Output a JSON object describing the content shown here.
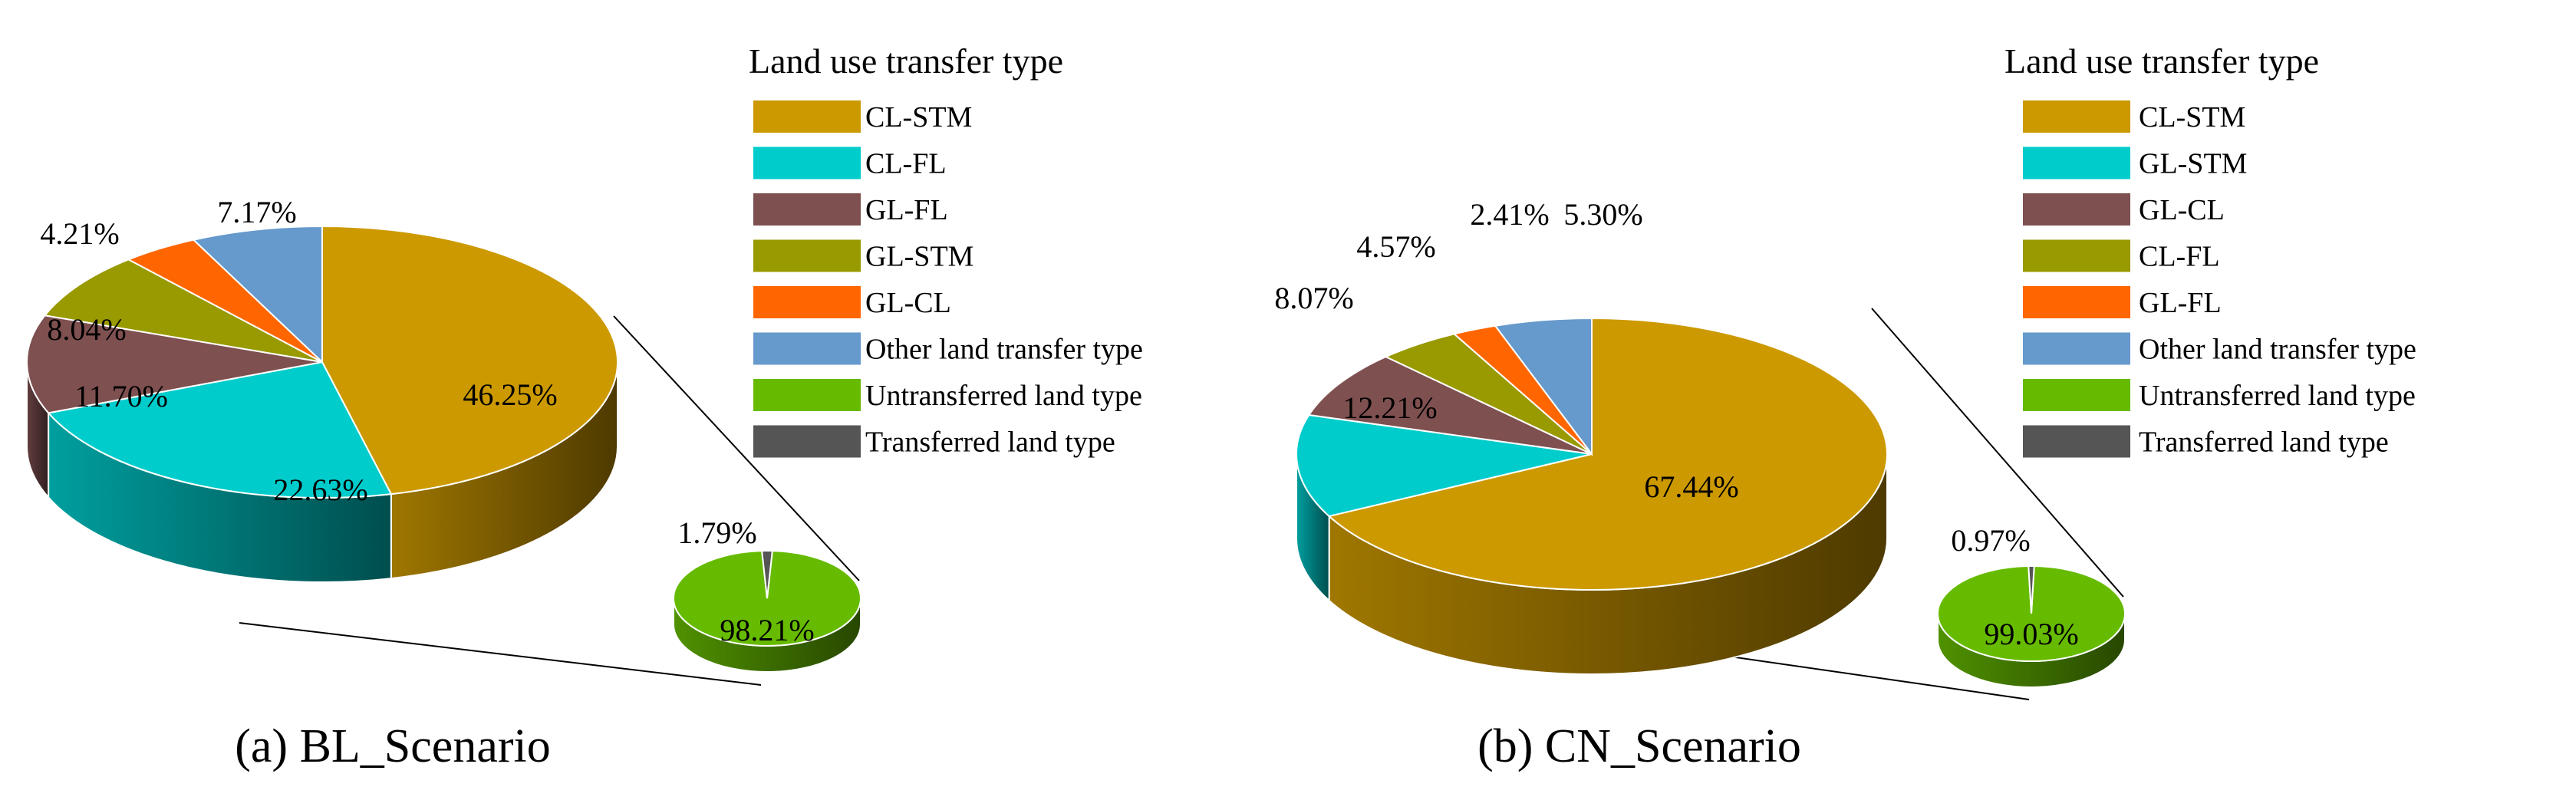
{
  "chart_data": [
    {
      "type": "pie",
      "caption": "(a) BL_Scenario",
      "legend_title": "Land use transfer type",
      "legend_placement": "right",
      "slices": [
        {
          "label": "CL-STM",
          "value": 46.25,
          "display": "46.25%",
          "color": "#CC9900"
        },
        {
          "label": "CL-FL",
          "value": 22.63,
          "display": "22.63%",
          "color": "#00CCCC"
        },
        {
          "label": "GL-FL",
          "value": 11.7,
          "display": "11.70%",
          "color": "#7F5050"
        },
        {
          "label": "GL-STM",
          "value": 8.04,
          "display": "8.04%",
          "color": "#999900"
        },
        {
          "label": "GL-CL",
          "value": 4.21,
          "display": "4.21%",
          "color": "#FF6600"
        },
        {
          "label": "Other land transfer type",
          "value": 7.17,
          "display": "7.17%",
          "color": "#6699CC"
        }
      ],
      "sub_pie": [
        {
          "label": "Untransferred land type",
          "value": 98.21,
          "display": "98.21%",
          "color": "#66BB00"
        },
        {
          "label": "Transferred land type",
          "value": 1.79,
          "display": "1.79%",
          "color": "#555555"
        }
      ]
    },
    {
      "type": "pie",
      "caption": "(b) CN_Scenario",
      "legend_title": "Land use transfer type",
      "legend_placement": "right",
      "slices": [
        {
          "label": "CL-STM",
          "value": 67.44,
          "display": "67.44%",
          "color": "#CC9900"
        },
        {
          "label": "GL-STM",
          "value": 12.21,
          "display": "12.21%",
          "color": "#00CCCC"
        },
        {
          "label": "GL-CL",
          "value": 8.07,
          "display": "8.07%",
          "color": "#7F5050"
        },
        {
          "label": "CL-FL",
          "value": 4.57,
          "display": "4.57%",
          "color": "#999900"
        },
        {
          "label": "GL-FL",
          "value": 2.41,
          "display": "2.41%",
          "color": "#FF6600"
        },
        {
          "label": "Other land transfer type",
          "value": 5.3,
          "display": "5.30%",
          "color": "#6699CC"
        }
      ],
      "sub_pie": [
        {
          "label": "Untransferred land type",
          "value": 99.03,
          "display": "99.03%",
          "color": "#66BB00"
        },
        {
          "label": "Transferred land type",
          "value": 0.97,
          "display": "0.97%",
          "color": "#555555"
        }
      ]
    }
  ]
}
